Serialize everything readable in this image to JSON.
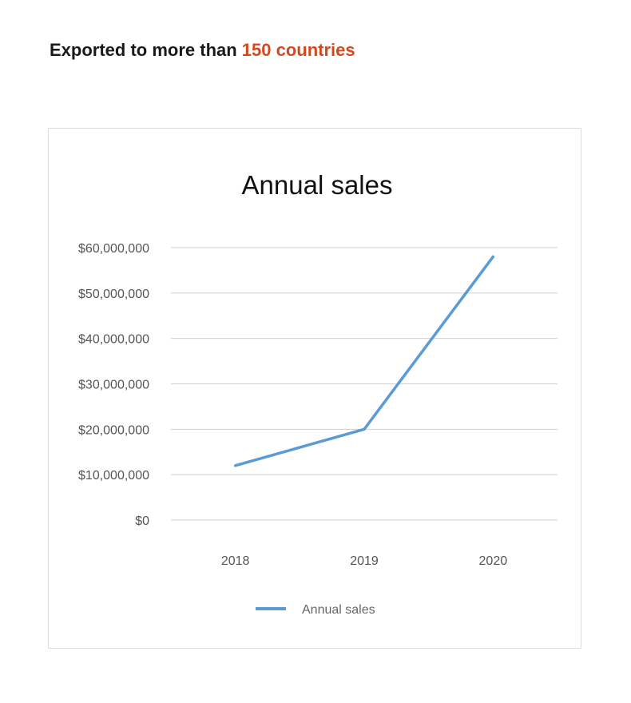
{
  "header": {
    "text_prefix": "Exported to more than ",
    "highlight": "150 countries",
    "highlight_color": "#d2491f"
  },
  "chart_data": {
    "type": "line",
    "title": "Annual sales",
    "xlabel": "",
    "ylabel": "",
    "categories": [
      "2018",
      "2019",
      "2020"
    ],
    "series": [
      {
        "name": "Annual sales",
        "values": [
          12000000,
          20000000,
          58000000
        ],
        "color": "#5b9bd5"
      }
    ],
    "ylim": [
      0,
      60000000
    ],
    "yticks": [
      0,
      10000000,
      20000000,
      30000000,
      40000000,
      50000000,
      60000000
    ],
    "ytick_labels": [
      "$0",
      "$10,000,000",
      "$20,000,000",
      "$30,000,000",
      "$40,000,000",
      "$50,000,000",
      "$60,000,000"
    ],
    "grid": true,
    "legend_position": "bottom"
  }
}
